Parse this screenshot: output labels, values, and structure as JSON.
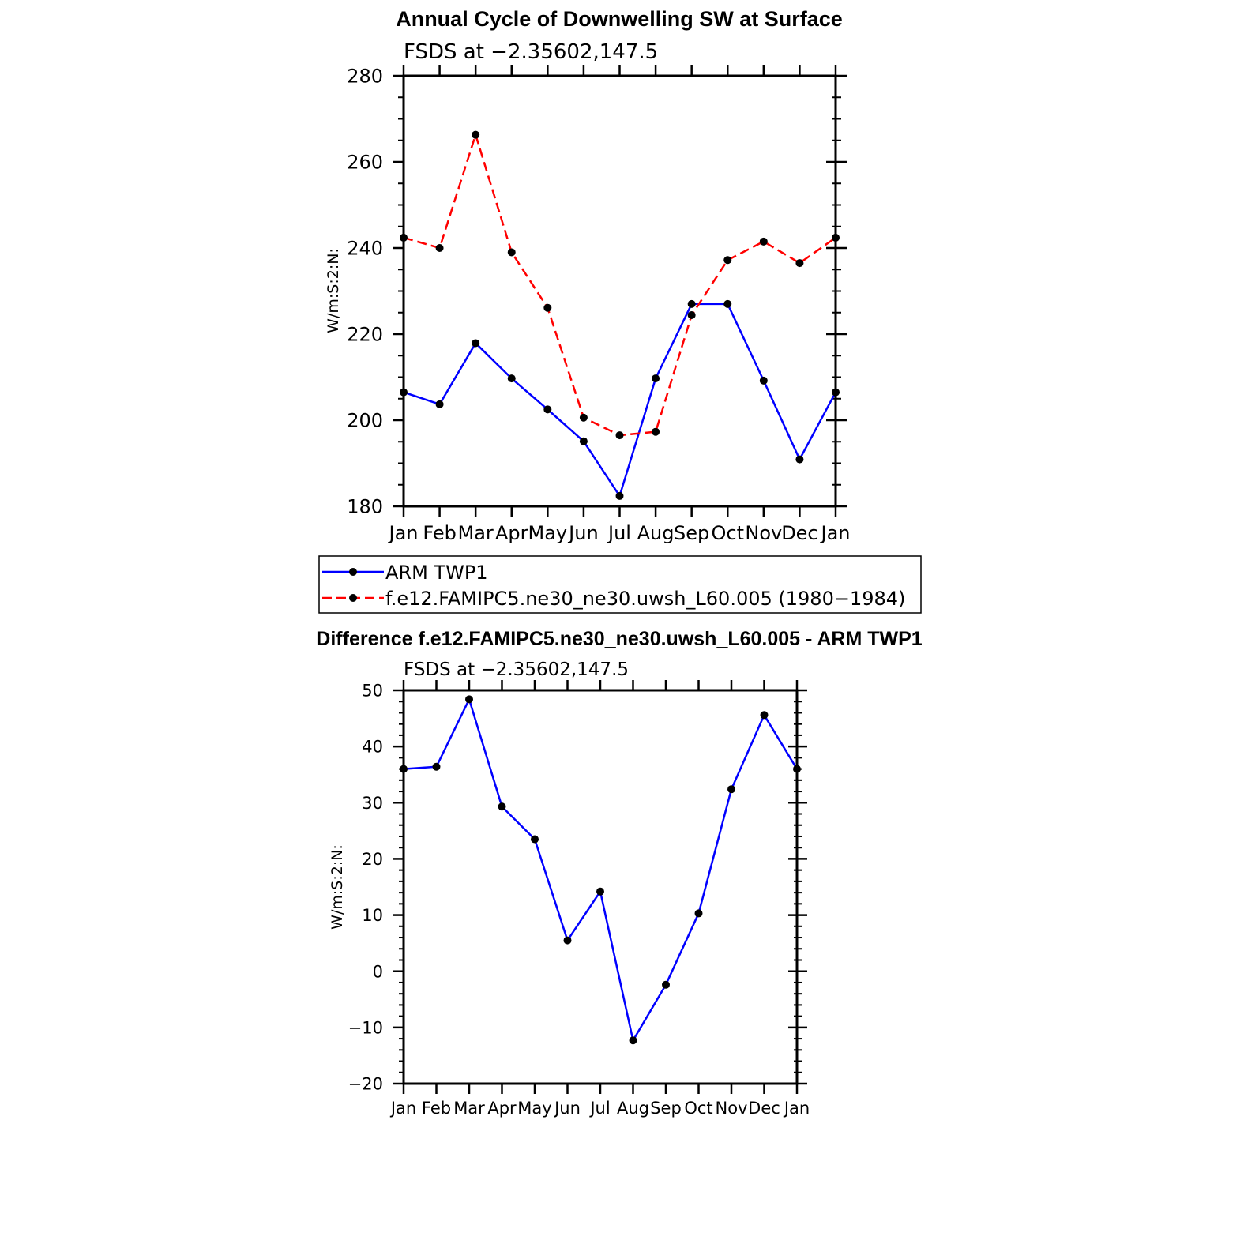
{
  "chart_data": [
    {
      "type": "line",
      "title": "Annual Cycle of Downwelling SW at Surface",
      "subtitle": "FSDS at −2.35602,147.5",
      "xlabel": "",
      "ylabel": "W/m:S:2:N:",
      "categories": [
        "Jan",
        "Feb",
        "Mar",
        "Apr",
        "May",
        "Jun",
        "Jul",
        "Aug",
        "Sep",
        "Oct",
        "Nov",
        "Dec",
        "Jan"
      ],
      "ylim": [
        180,
        280
      ],
      "yticks": [
        180,
        200,
        220,
        240,
        260,
        280
      ],
      "ytick_labels": [
        "180",
        "200",
        "220",
        "240",
        "260",
        "280"
      ],
      "grid": false,
      "series": [
        {
          "name": "ARM TWP1",
          "color": "#0000ff",
          "style": "solid",
          "values": [
            206.5,
            203.7,
            217.9,
            209.7,
            202.5,
            195.1,
            182.4,
            209.7,
            227.0,
            227.0,
            209.2,
            190.9,
            206.5
          ]
        },
        {
          "name": "f.e12.FAMIPC5.ne30_ne30.uwsh_L60.005 (1980−1984)",
          "color": "#ff0000",
          "style": "dashed",
          "values": [
            242.4,
            240.0,
            266.3,
            239.0,
            226.1,
            200.6,
            196.5,
            197.3,
            224.4,
            237.2,
            241.5,
            236.5,
            242.4
          ]
        }
      ],
      "legend": {
        "position": "bottom",
        "entries": [
          "ARM TWP1",
          "f.e12.FAMIPC5.ne30_ne30.uwsh_L60.005 (1980−1984)"
        ]
      }
    },
    {
      "type": "line",
      "title": "Difference f.e12.FAMIPC5.ne30_ne30.uwsh_L60.005 - ARM TWP1",
      "subtitle": "FSDS at −2.35602,147.5",
      "xlabel": "",
      "ylabel": "W/m:S:2:N:",
      "categories": [
        "Jan",
        "Feb",
        "Mar",
        "Apr",
        "May",
        "Jun",
        "Jul",
        "Aug",
        "Sep",
        "Oct",
        "Nov",
        "Dec",
        "Jan"
      ],
      "ylim": [
        -20,
        50
      ],
      "yticks": [
        -20,
        -10,
        0,
        10,
        20,
        30,
        40,
        50
      ],
      "ytick_labels": [
        "−20",
        "−10",
        "0",
        "10",
        "20",
        "30",
        "40",
        "50"
      ],
      "grid": false,
      "series": [
        {
          "name": "Difference",
          "color": "#0000ff",
          "style": "solid",
          "values": [
            36.0,
            36.4,
            48.4,
            29.3,
            23.5,
            5.5,
            14.2,
            -12.3,
            -2.4,
            10.3,
            32.4,
            45.6,
            36.0
          ]
        }
      ]
    }
  ]
}
